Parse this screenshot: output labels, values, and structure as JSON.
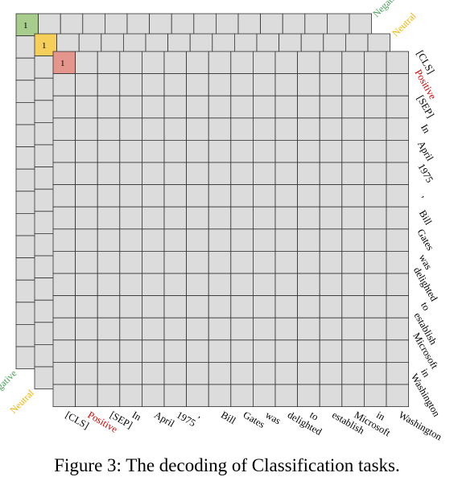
{
  "tokens": [
    "[CLS]",
    "Positive",
    "[SEP]",
    "In",
    "April",
    "1975",
    ",",
    "Bill",
    "Gates",
    "was",
    "delighted",
    "to",
    "establish",
    "Microsoft",
    "in",
    "Washington"
  ],
  "highlight_token": "Positive",
  "layers": [
    {
      "name": "Negative",
      "color": "#4aa05a",
      "marker_fill": "#a8cc8c",
      "marker_value": "1"
    },
    {
      "name": "Neutral",
      "color": "#f0b400",
      "marker_fill": "#f6cf5a",
      "marker_value": "1"
    },
    {
      "name": "Positive",
      "color": "#d42020",
      "marker_fill": "#e5968c",
      "marker_value": "1"
    }
  ],
  "colors": {
    "cell_fill": "#dcdcdc",
    "cell_stroke": "#333333",
    "highlight": "#d40000"
  },
  "caption": "Figure 3: The decoding of Classification tasks."
}
